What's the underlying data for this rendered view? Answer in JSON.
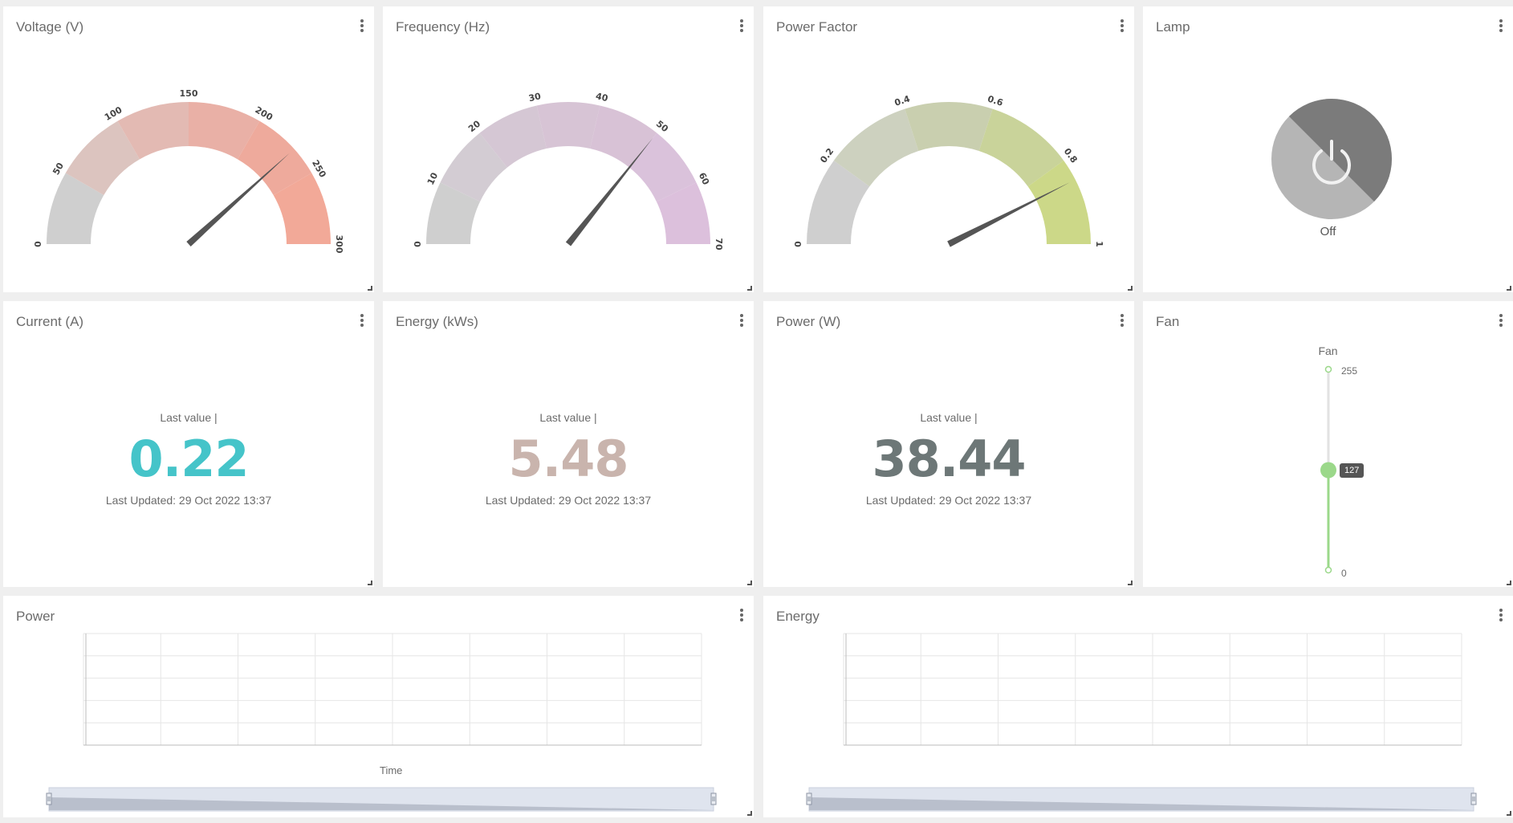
{
  "colors": {
    "voltage": [
      "#cfcfcf",
      "#dcc4bf",
      "#e3bab3",
      "#e9b0a6",
      "#eeaa9c",
      "#f2a998"
    ],
    "frequency": [
      "#cfcfcf",
      "#d3ccd3",
      "#d5c7d4",
      "#d7c4d5",
      "#d8c2d6",
      "#dac2db",
      "#dcc0dc"
    ],
    "power_factor": [
      "#cfcfcf",
      "#cdd1bf",
      "#c9cfaf",
      "#c9d39a",
      "#ccd888"
    ],
    "current_value": "#45c4c9",
    "energy_value": "#c9b4ad",
    "power_value": "#6d7777",
    "slider_green": "#9bd88a",
    "lamp_dark": "#7b7b7b",
    "lamp_light": "#b5b5b5"
  },
  "cards": {
    "voltage": {
      "title": "Voltage (V)",
      "gauge": {
        "min": 0,
        "max": 300,
        "value": 230,
        "ticks": [
          "0",
          "50",
          "100",
          "150",
          "200",
          "250",
          "300"
        ],
        "tick_values": [
          0,
          50,
          100,
          150,
          200,
          250,
          300
        ]
      }
    },
    "frequency": {
      "title": "Frequency (Hz)",
      "gauge": {
        "min": 0,
        "max": 70,
        "value": 50,
        "ticks": [
          "0",
          "10",
          "20",
          "30",
          "40",
          "50",
          "60",
          "70"
        ],
        "tick_values": [
          0,
          10,
          20,
          30,
          40,
          50,
          60,
          70
        ]
      }
    },
    "power_factor": {
      "title": "Power Factor",
      "gauge": {
        "min": 0,
        "max": 1,
        "value": 0.85,
        "ticks": [
          "0",
          "0.2",
          "0.4",
          "0.6",
          "0.8",
          "1"
        ],
        "tick_values": [
          0,
          0.2,
          0.4,
          0.6,
          0.8,
          1
        ]
      }
    },
    "lamp": {
      "title": "Lamp",
      "state": "Off",
      "icon": "power-icon"
    },
    "current": {
      "title": "Current (A)",
      "last_value_label": "Last value |",
      "value": "0.22",
      "updated": "Last Updated: 29 Oct 2022 13:37"
    },
    "energy_kws": {
      "title": "Energy (kWs)",
      "last_value_label": "Last value |",
      "value": "5.48",
      "updated": "Last Updated: 29 Oct 2022 13:37"
    },
    "power_w": {
      "title": "Power (W)",
      "last_value_label": "Last value |",
      "value": "38.44",
      "updated": "Last Updated: 29 Oct 2022 13:37"
    },
    "fan": {
      "title": "Fan",
      "slider_label": "Fan",
      "max": "255",
      "min": "0",
      "value": "127",
      "value_fraction": 0.498
    },
    "power_chart": {
      "title": "Power",
      "xlabel": "Time"
    },
    "energy_chart": {
      "title": "Energy",
      "xlabel": ""
    }
  },
  "chart_data": [
    {
      "type": "line",
      "title": "Power",
      "xlabel": "Time",
      "ylabel": "",
      "series": [],
      "grid": true
    },
    {
      "type": "line",
      "title": "Energy",
      "xlabel": "",
      "ylabel": "",
      "series": [],
      "grid": true
    }
  ]
}
